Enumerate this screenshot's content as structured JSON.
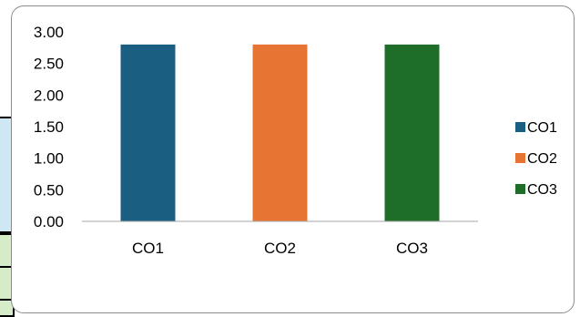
{
  "chart_data": {
    "type": "bar",
    "title": "",
    "xlabel": "",
    "ylabel": "",
    "categories": [
      "CO1",
      "CO2",
      "CO3"
    ],
    "values": [
      2.8,
      2.8,
      2.8
    ],
    "colors": [
      "#1a5e82",
      "#e87433",
      "#1e6e2a"
    ],
    "ylim": [
      0,
      3
    ],
    "yticks": [
      "0.00",
      "0.50",
      "1.00",
      "1.50",
      "2.00",
      "2.50",
      "3.00"
    ],
    "ytick_values": [
      0,
      0.5,
      1,
      1.5,
      2,
      2.5,
      3
    ],
    "legend": [
      "CO1",
      "CO2",
      "CO3"
    ],
    "legend_position": "right",
    "grid": false
  }
}
